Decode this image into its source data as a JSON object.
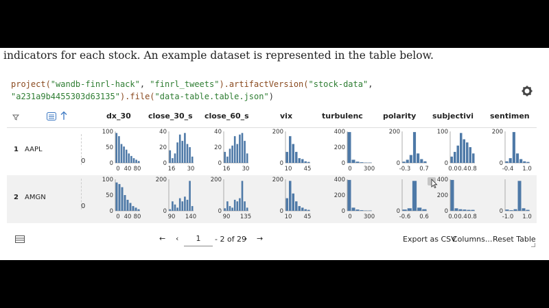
{
  "intro_text": "indicators for each stock. An example dataset is represented in the table below.",
  "code": {
    "l1_fn1": "project(",
    "l1_arg1": "\"wandb-finrl-hack\"",
    "l1_sep": ", ",
    "l1_arg2": "\"finrl_tweets\"",
    "l1_fn2": ").artifactVersion(",
    "l1_arg3": "\"stock-data\"",
    "l1_end": ",",
    "l2_arg": "\"a231a9b4455303d63135\"",
    "l2_fn": ").file(",
    "l2_arg2": "\"data-table.table.json\"",
    "l2_end": ")"
  },
  "columns": [
    "dx_30",
    "close_30_s",
    "close_60_s",
    "vix",
    "turbulenc",
    "polarity",
    "subjectivi",
    "sentimen"
  ],
  "rows": [
    {
      "num": "1",
      "name": "AAPL",
      "first_axis": "0",
      "cells": [
        {
          "yticks": [
            "100",
            "50",
            "0"
          ],
          "xticks": [
            "0",
            "40",
            "80"
          ],
          "bars": [
            0.95,
            0.85,
            0.6,
            0.52,
            0.42,
            0.3,
            0.22,
            0.15,
            0.1,
            0.06
          ]
        },
        {
          "yticks": [
            "40",
            "20",
            "0"
          ],
          "xticks": [
            "16",
            "30"
          ],
          "bars": [
            0.4,
            0.15,
            0.3,
            0.65,
            0.9,
            0.7,
            0.95,
            0.6,
            0.5,
            0.2
          ]
        },
        {
          "yticks": [
            "40",
            "20",
            "0"
          ],
          "xticks": [
            "16",
            "30"
          ],
          "bars": [
            0.35,
            0.2,
            0.45,
            0.55,
            0.85,
            0.6,
            0.9,
            0.95,
            0.7,
            0.3
          ]
        },
        {
          "yticks": [
            "200",
            "0"
          ],
          "xticks": [
            "10",
            "45"
          ],
          "bars": [
            0.35,
            0.85,
            0.6,
            0.35,
            0.15,
            0.12,
            0.05,
            0.03
          ]
        },
        {
          "yticks": [
            "400",
            "200",
            "0"
          ],
          "xticks": [
            "0",
            "300"
          ],
          "bars": [
            0.98,
            0.1,
            0.04,
            0.02,
            0.01,
            0.01
          ]
        },
        {
          "yticks": [
            "200",
            "0"
          ],
          "xticks": [
            "-0.3",
            "0.7"
          ],
          "bars": [
            0.04,
            0.1,
            0.25,
            0.98,
            0.3,
            0.12,
            0.05
          ]
        },
        {
          "yticks": [
            "100",
            "0"
          ],
          "xticks": [
            "0.0",
            "0.4",
            "0.8"
          ],
          "bars": [
            0.2,
            0.35,
            0.55,
            0.95,
            0.75,
            0.65,
            0.5,
            0.3
          ]
        },
        {
          "yticks": [
            "200",
            "0"
          ],
          "xticks": [
            "-0.4",
            "1.0"
          ],
          "bars": [
            0.05,
            0.15,
            0.98,
            0.3,
            0.12,
            0.05,
            0.03
          ]
        }
      ]
    },
    {
      "num": "2",
      "name": "AMGN",
      "first_axis": "0",
      "cells": [
        {
          "yticks": [
            "100",
            "50",
            "0"
          ],
          "xticks": [
            "0",
            "40",
            "80"
          ],
          "bars": [
            0.9,
            0.85,
            0.75,
            0.5,
            0.35,
            0.25,
            0.15,
            0.1,
            0.05
          ]
        },
        {
          "yticks": [
            "200",
            "0"
          ],
          "xticks": [
            "90",
            "140"
          ],
          "bars": [
            0.05,
            0.3,
            0.2,
            0.1,
            0.4,
            0.3,
            0.45,
            0.35,
            0.95,
            0.15
          ]
        },
        {
          "yticks": [
            "200",
            "0"
          ],
          "xticks": [
            "90",
            "135"
          ],
          "bars": [
            0.08,
            0.3,
            0.15,
            0.1,
            0.35,
            0.3,
            0.4,
            0.95,
            0.3,
            0.1
          ]
        },
        {
          "yticks": [
            "200",
            "0"
          ],
          "xticks": [
            "10",
            "45"
          ],
          "bars": [
            0.4,
            0.95,
            0.55,
            0.3,
            0.15,
            0.1,
            0.05,
            0.03
          ]
        },
        {
          "yticks": [
            "400",
            "200",
            "0"
          ],
          "xticks": [
            "0",
            "300"
          ],
          "bars": [
            0.98,
            0.1,
            0.04,
            0.02,
            0.01,
            0.01
          ]
        },
        {
          "yticks": [
            "0"
          ],
          "xticks": [
            "-0.6",
            "0.6"
          ],
          "bars": [
            0.04,
            0.08,
            0.95,
            0.1,
            0.05
          ]
        },
        {
          "yticks": [
            "400",
            "200",
            "0"
          ],
          "xticks": [
            "0.0",
            "0.4",
            "0.8"
          ],
          "bars": [
            0.98,
            0.08,
            0.05,
            0.04,
            0.03,
            0.03
          ]
        },
        {
          "yticks": [
            "0"
          ],
          "xticks": [
            "-1.0",
            "1.0"
          ],
          "bars": [
            0.04,
            0.02,
            0.05,
            0.95,
            0.08,
            0.03
          ]
        }
      ]
    }
  ],
  "footer": {
    "page_value": "1",
    "page_total": "- 2 of 29",
    "export": "Export as CSV",
    "columns": "Columns...",
    "reset": "Reset Table"
  },
  "colors": {
    "bar": "#4e79a7",
    "code_fn": "#8a4a1f",
    "code_str": "#2e7d32"
  },
  "icons": [
    "gear-icon",
    "filter-icon",
    "list-icon",
    "sort-up-icon",
    "table-icon",
    "first-page-icon",
    "prev-page-icon",
    "next-page-icon",
    "last-page-icon",
    "cursor-icon"
  ]
}
